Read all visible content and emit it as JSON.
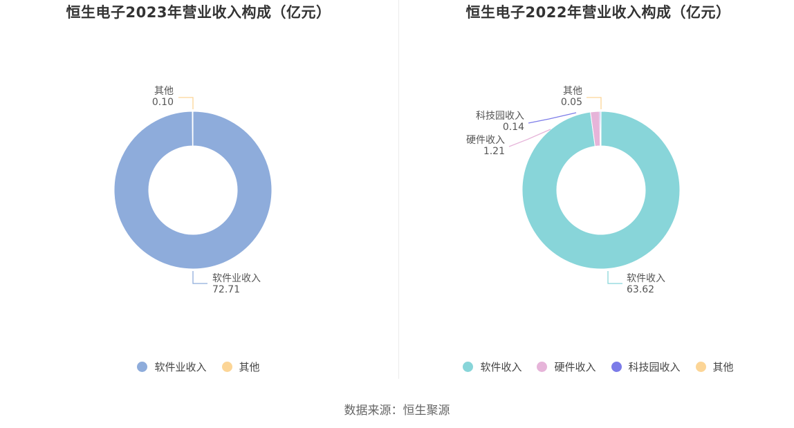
{
  "chart_data": [
    {
      "type": "pie",
      "title": "恒生电子2023年营业收入构成（亿元）",
      "slices": [
        {
          "label": "软件业收入",
          "value": 72.71,
          "value_text": "72.71",
          "color": "#8eacdb"
        },
        {
          "label": "其他",
          "value": 0.1,
          "value_text": "0.10",
          "color": "#fcd596"
        }
      ],
      "legend": [
        "软件业收入",
        "其他"
      ],
      "legend_position": "bottom"
    },
    {
      "type": "pie",
      "title": "恒生电子2022年营业收入构成（亿元）",
      "slices": [
        {
          "label": "软件收入",
          "value": 63.62,
          "value_text": "63.62",
          "color": "#88d5d9"
        },
        {
          "label": "硬件收入",
          "value": 1.21,
          "value_text": "1.21",
          "color": "#e6b4d9"
        },
        {
          "label": "科技园收入",
          "value": 0.14,
          "value_text": "0.14",
          "color": "#7b7be8"
        },
        {
          "label": "其他",
          "value": 0.05,
          "value_text": "0.05",
          "color": "#fcd596"
        }
      ],
      "legend": [
        "软件收入",
        "硬件收入",
        "科技园收入",
        "其他"
      ],
      "legend_position": "bottom"
    }
  ],
  "footer": {
    "source": "数据来源：恒生聚源"
  }
}
